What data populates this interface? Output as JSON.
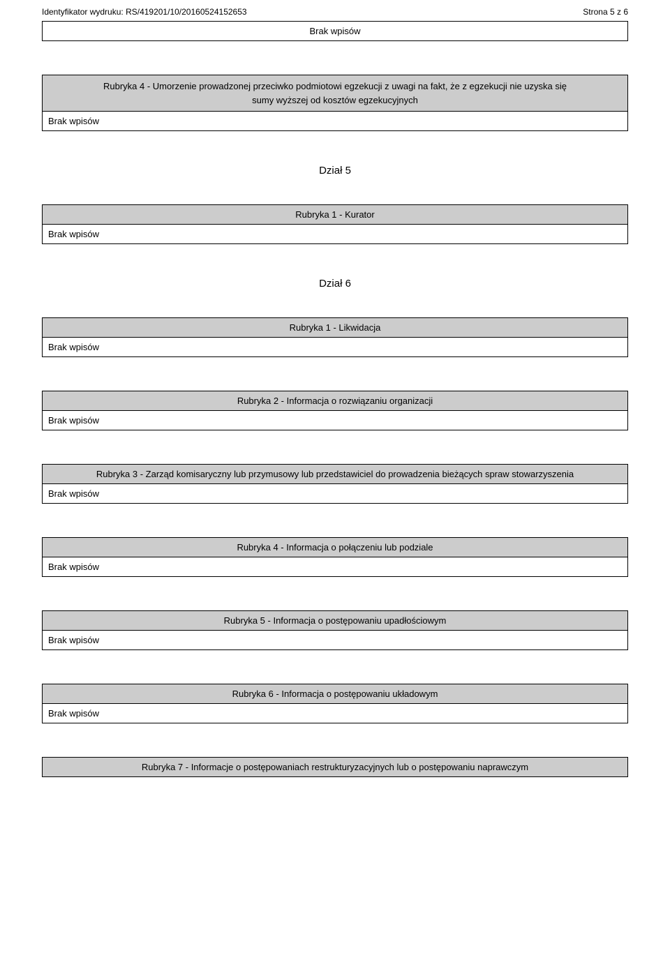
{
  "header": {
    "identifier_label": "Identyfikator wydruku:",
    "identifier_value": "RS/419201/10/20160524152653",
    "page_label": "Strona 5 z 6"
  },
  "empty_text": "Brak wpisów",
  "top_empty": "Brak wpisów",
  "sections": [
    {
      "title_line1": "Rubryka 4 - Umorzenie prowadzonej przeciwko podmiotowi egzekucji z uwagi na fakt, że z egzekucji nie uzyska się",
      "title_line2": "sumy wyższej od kosztów egzekucyjnych"
    }
  ],
  "dzial5": "Dział 5",
  "s5": [
    {
      "title": "Rubryka 1 - Kurator"
    }
  ],
  "dzial6": "Dział 6",
  "s6": [
    {
      "title": "Rubryka 1 - Likwidacja"
    },
    {
      "title": "Rubryka 2 - Informacja o rozwiązaniu organizacji"
    },
    {
      "title": "Rubryka 3 - Zarząd komisaryczny lub przymusowy lub przedstawiciel do prowadzenia bieżących spraw stowarzyszenia"
    },
    {
      "title": "Rubryka 4 - Informacja o połączeniu lub podziale"
    },
    {
      "title": "Rubryka 5 - Informacja o postępowaniu upadłościowym"
    },
    {
      "title": "Rubryka 6 - Informacja o postępowaniu układowym"
    }
  ],
  "s7_title": "Rubryka 7 - Informacje o postępowaniach restrukturyzacyjnych lub o postępowaniu naprawczym"
}
